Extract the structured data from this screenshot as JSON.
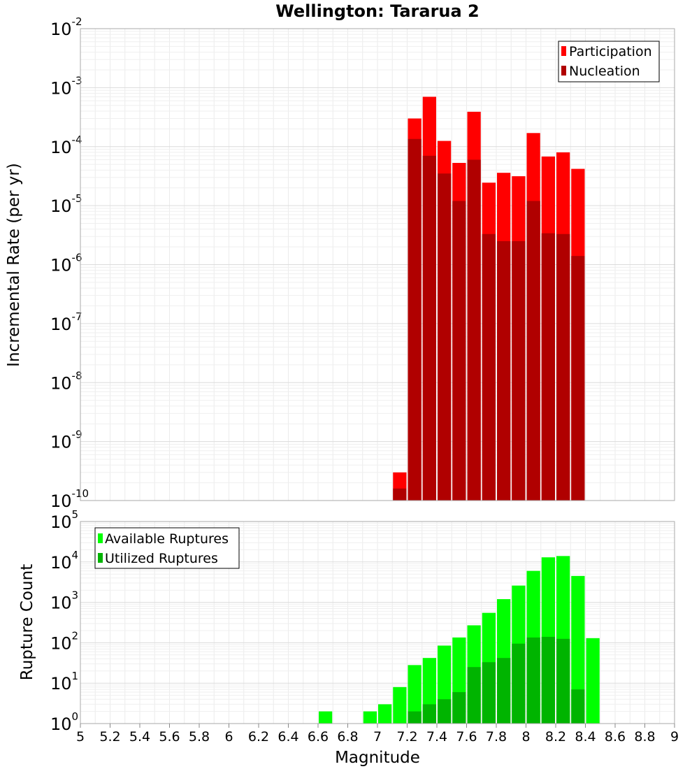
{
  "chart_data": [
    {
      "type": "bar",
      "title": "Wellington: Tararua 2",
      "ylabel": "Incremental Rate (per yr)",
      "xlabel": "",
      "yscale": "log",
      "ylim_exponents": [
        -10,
        -2
      ],
      "xlim": [
        5,
        9
      ],
      "grid": true,
      "legend_position": "top-right",
      "x": [
        7.15,
        7.25,
        7.35,
        7.45,
        7.55,
        7.65,
        7.75,
        7.85,
        7.95,
        8.05,
        8.15,
        8.25,
        8.35
      ],
      "series": [
        {
          "name": "Participation",
          "color": "#ff0000",
          "values": [
            3e-10,
            0.0003,
            0.0007,
            0.000125,
            5.3e-05,
            0.00039,
            2.45e-05,
            3.6e-05,
            3.15e-05,
            0.00017,
            6.8e-05,
            8e-05,
            4.2e-05
          ]
        },
        {
          "name": "Nucleation",
          "color": "#b00000",
          "values": [
            1.6e-10,
            0.000135,
            7e-05,
            3.5e-05,
            1.2e-05,
            6e-05,
            3.3e-06,
            2.5e-06,
            2.5e-06,
            1.2e-05,
            3.4e-06,
            3.3e-06,
            1.4e-06
          ]
        }
      ]
    },
    {
      "type": "bar",
      "title": "",
      "ylabel": "Rupture Count",
      "xlabel": "Magnitude",
      "yscale": "log",
      "ylim_exponents": [
        0,
        5
      ],
      "xlim": [
        5,
        9
      ],
      "grid": true,
      "legend_position": "top-left",
      "x": [
        6.65,
        6.75,
        6.85,
        6.95,
        7.05,
        7.15,
        7.25,
        7.35,
        7.45,
        7.55,
        7.65,
        7.75,
        7.85,
        7.95,
        8.05,
        8.15,
        8.25,
        8.35,
        8.45
      ],
      "series": [
        {
          "name": "Available Ruptures",
          "color": "#00ff00",
          "values": [
            2,
            1,
            1,
            2,
            3,
            8,
            28,
            42,
            85,
            135,
            270,
            550,
            1200,
            2600,
            6000,
            13000,
            14000,
            4500,
            130
          ]
        },
        {
          "name": "Utilized Ruptures",
          "color": "#00b400",
          "values": [
            0,
            0,
            0,
            0,
            0,
            1,
            2,
            3,
            4,
            6,
            25,
            33,
            42,
            95,
            135,
            140,
            125,
            7,
            0
          ]
        }
      ]
    }
  ],
  "x_ticks": [
    "5",
    "5.2",
    "5.4",
    "5.6",
    "5.8",
    "6",
    "6.2",
    "6.4",
    "6.6",
    "6.8",
    "7",
    "7.2",
    "7.4",
    "7.6",
    "7.8",
    "8",
    "8.2",
    "8.4",
    "8.6",
    "8.8",
    "9"
  ]
}
